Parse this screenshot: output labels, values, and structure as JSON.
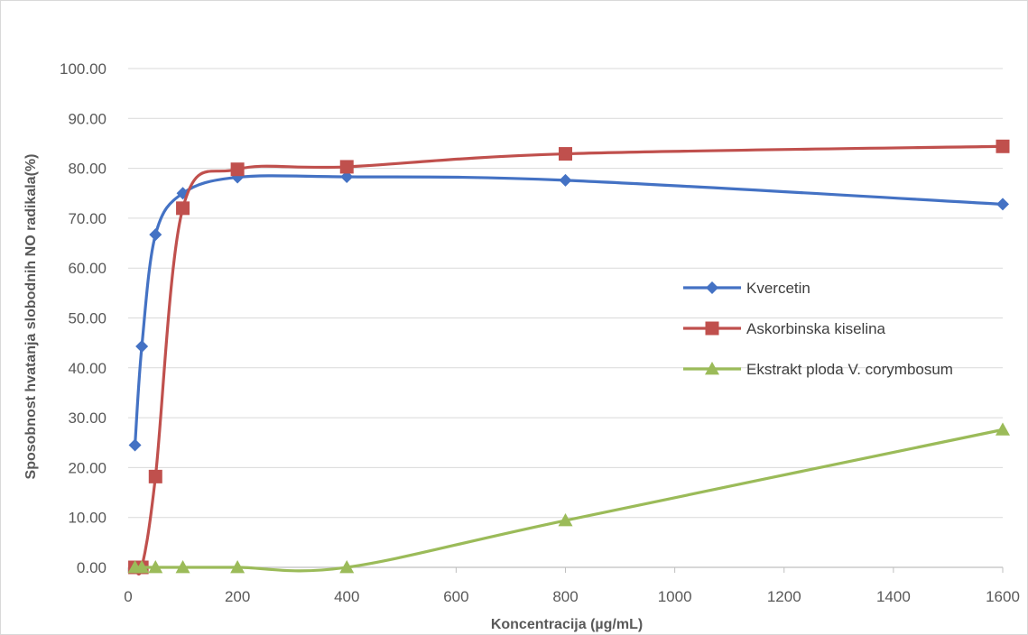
{
  "chart_data": {
    "type": "line",
    "xlabel": "Koncentracija (µg/mL)",
    "ylabel": "Sposobnost hvatanja slobodnih NO radikala(%)",
    "xlim": [
      0,
      1600
    ],
    "ylim": [
      0,
      100
    ],
    "x_ticks": [
      0,
      200,
      400,
      600,
      800,
      1000,
      1200,
      1400,
      1600
    ],
    "y_ticks": [
      "0.00",
      "10.00",
      "20.00",
      "30.00",
      "40.00",
      "50.00",
      "60.00",
      "70.00",
      "80.00",
      "90.00",
      "100.00"
    ],
    "grid": "horizontal",
    "legend_position": "right",
    "series": [
      {
        "name": "Kvercetin",
        "color": "#4472c4",
        "marker": "diamond",
        "x": [
          12.5,
          25,
          50,
          100,
          200,
          400,
          800,
          1600
        ],
        "values": [
          24.5,
          44.3,
          66.7,
          75.0,
          78.2,
          78.3,
          77.6,
          72.8
        ]
      },
      {
        "name": "Askorbinska kiselina",
        "color": "#c0504d",
        "marker": "square",
        "x": [
          12.5,
          25,
          50,
          100,
          200,
          400,
          800,
          1600
        ],
        "values": [
          0.0,
          0.0,
          18.2,
          72.0,
          79.8,
          80.3,
          82.9,
          84.4
        ]
      },
      {
        "name": "Ekstrakt ploda V. corymbosum",
        "color": "#9bbb59",
        "marker": "triangle",
        "x": [
          12.5,
          25,
          50,
          100,
          200,
          400,
          800,
          1600
        ],
        "values": [
          0.0,
          0.0,
          0.0,
          0.0,
          0.0,
          0.0,
          9.4,
          27.6
        ]
      }
    ]
  }
}
